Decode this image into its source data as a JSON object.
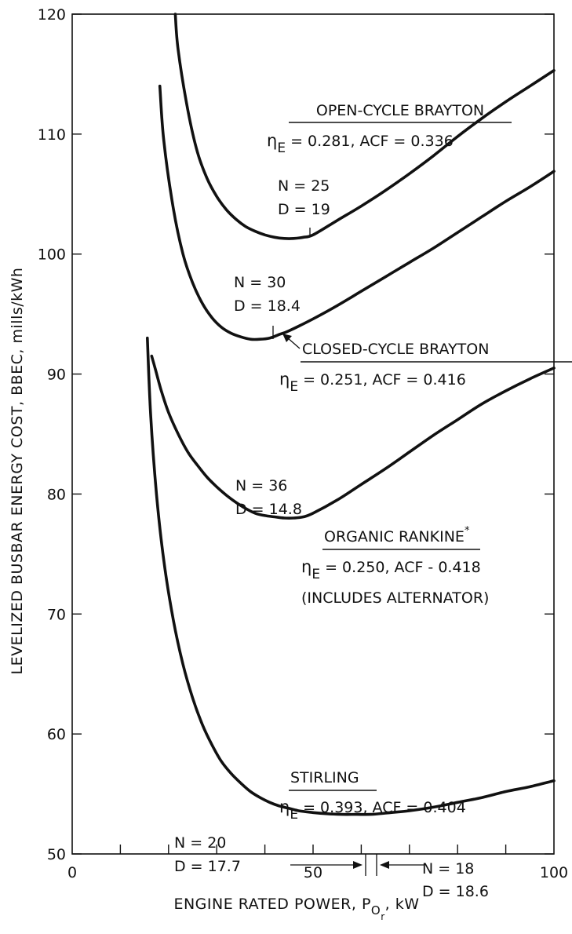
{
  "chart_data": {
    "type": "line",
    "title": "",
    "xlabel": "ENGINE RATED POWER, P",
    "xlabel_sub": "O",
    "xlabel_subsub": "r",
    "xlabel_unit": ", kW",
    "ylabel": "LEVELIZED BUSBAR ENERGY COST, BBEC, mills/kWh",
    "xlim": [
      0,
      100
    ],
    "ylim": [
      50,
      120
    ],
    "x_ticks": [
      0,
      50,
      100
    ],
    "y_ticks": [
      50,
      60,
      70,
      80,
      90,
      100,
      110,
      120
    ],
    "x_tick_labels": [
      "0",
      "50",
      "100"
    ],
    "y_tick_labels": [
      "50",
      "60",
      "70",
      "80",
      "90",
      "100",
      "110",
      "120"
    ],
    "grid": false,
    "series": [
      {
        "name": "OPEN-CYCLE BRAYTON",
        "params": {
          "eta": "η",
          "sub": "E",
          "text": " = 0.281, ACF = 0.336"
        },
        "x": [
          21.4,
          22,
          24,
          26,
          28,
          30,
          32,
          34,
          36,
          38,
          40,
          42,
          44,
          46,
          48,
          50,
          55,
          60,
          65,
          70,
          75,
          80,
          85,
          90,
          95,
          100
        ],
        "y": [
          120,
          117,
          112,
          108.5,
          106.3,
          104.8,
          103.7,
          102.9,
          102.3,
          101.9,
          101.6,
          101.4,
          101.3,
          101.3,
          101.4,
          101.6,
          102.8,
          104.0,
          105.3,
          106.7,
          108.2,
          109.8,
          111.3,
          112.7,
          114.0,
          115.3
        ]
      },
      {
        "name": "CLOSED-CYCLE BRAYTON",
        "params": {
          "eta": "η",
          "sub": "E",
          "text": " = 0.251, ACF = 0.416"
        },
        "x": [
          18.2,
          19,
          21,
          23,
          25,
          27,
          29,
          31,
          33,
          35,
          37,
          39,
          41,
          43,
          45,
          50,
          55,
          60,
          65,
          70,
          75,
          80,
          85,
          90,
          95,
          100
        ],
        "y": [
          114,
          109.5,
          103.8,
          100.0,
          97.6,
          95.9,
          94.7,
          93.9,
          93.4,
          93.1,
          92.9,
          92.9,
          93.0,
          93.3,
          93.6,
          94.6,
          95.7,
          96.9,
          98.1,
          99.3,
          100.5,
          101.8,
          103.1,
          104.4,
          105.6,
          106.9
        ]
      },
      {
        "name": "ORGANIC RANKINE",
        "name_mark": "*",
        "params": {
          "eta": "η",
          "sub": "E",
          "text": " = 0.250, ACF - 0.418"
        },
        "note": "(INCLUDES ALTERNATOR)",
        "x": [
          16.5,
          17.2,
          18.5,
          20,
          22,
          24,
          26,
          28,
          30,
          32,
          34,
          36,
          38,
          40,
          42,
          44,
          46,
          48,
          50,
          55,
          60,
          65,
          70,
          75,
          80,
          85,
          90,
          95,
          100
        ],
        "y": [
          91.5,
          90.5,
          88.6,
          86.8,
          85.0,
          83.5,
          82.4,
          81.4,
          80.6,
          79.9,
          79.3,
          78.8,
          78.4,
          78.2,
          78.1,
          78.0,
          78.0,
          78.1,
          78.4,
          79.5,
          80.8,
          82.1,
          83.5,
          84.9,
          86.2,
          87.5,
          88.6,
          89.6,
          90.5
        ]
      },
      {
        "name": "STIRLING",
        "params": {
          "eta": "η",
          "sub": "E",
          "text": " = 0.393, ACF = 0.404"
        },
        "x": [
          15.6,
          16.3,
          17.5,
          19,
          21,
          23,
          25,
          27,
          29,
          31,
          33,
          35,
          37,
          39,
          41,
          43,
          45,
          47,
          50,
          53,
          56,
          59,
          62,
          65,
          70,
          75,
          80,
          85,
          90,
          95,
          100
        ],
        "y": [
          93,
          86.5,
          80.0,
          74.5,
          69.5,
          65.8,
          63.0,
          60.8,
          59.1,
          57.7,
          56.7,
          55.9,
          55.2,
          54.7,
          54.3,
          54.0,
          53.8,
          53.6,
          53.45,
          53.35,
          53.3,
          53.3,
          53.3,
          53.4,
          53.6,
          53.9,
          54.3,
          54.7,
          55.2,
          55.6,
          56.1
        ]
      }
    ],
    "annotations": {
      "ocb_n": "N = 25",
      "ocb_d": "D = 19",
      "ccb_n": "N = 30",
      "ccb_d": "D = 18.4",
      "or_n": "N = 36",
      "or_d": "D = 14.8",
      "st_left_n": "N = 20",
      "st_left_d": "D = 17.7",
      "st_right_n": "N = 18",
      "st_right_d": "D = 18.6"
    }
  }
}
